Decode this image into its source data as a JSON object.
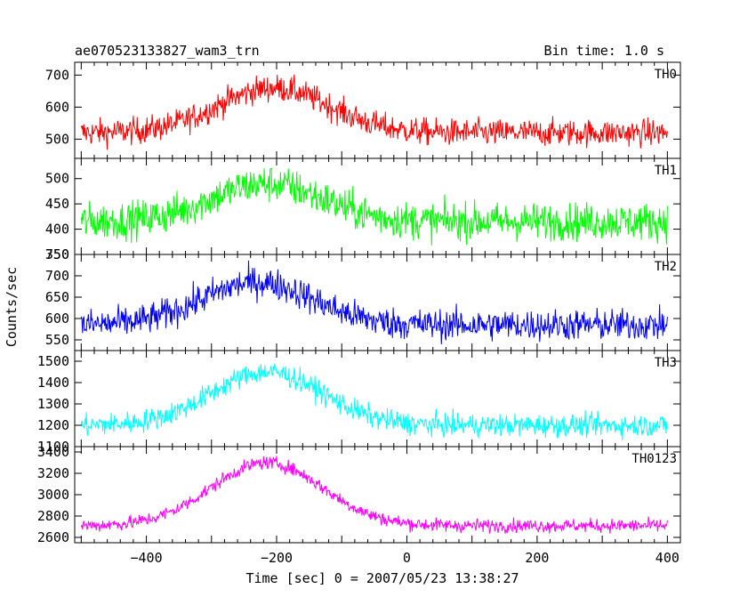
{
  "header": {
    "title": "ae070523133827_wam3_trn",
    "bin_time": "Bin time: 1.0 s"
  },
  "axes": {
    "ylabel": "Counts/sec",
    "xlabel": "Time [sec] 0 = 2007/05/23 13:38:27",
    "xlim": [
      -510,
      420
    ],
    "xticks": [
      -400,
      -200,
      0,
      200,
      400
    ],
    "xtick_labels": [
      "−400",
      "−200",
      "0",
      "200",
      "400"
    ]
  },
  "chart_data": [
    {
      "type": "line",
      "series_name": "TH0",
      "color": "#ff0000",
      "ylim": [
        440,
        740
      ],
      "yticks": [
        500,
        600,
        700
      ],
      "baseline": 520,
      "peak": 660,
      "peak_time": -205,
      "noise_amplitude": 40,
      "x_range": [
        -500,
        400
      ],
      "x_step": 1
    },
    {
      "type": "line",
      "series_name": "TH1",
      "color": "#00ff00",
      "ylim": [
        350,
        540
      ],
      "yticks": [
        350,
        400,
        450,
        500
      ],
      "baseline": 415,
      "peak": 490,
      "peak_time": -215,
      "noise_amplitude": 35,
      "x_range": [
        -500,
        400
      ],
      "x_step": 1
    },
    {
      "type": "line",
      "series_name": "TH2",
      "color": "#0000ff",
      "ylim": [
        525,
        750
      ],
      "yticks": [
        550,
        600,
        650,
        700,
        750
      ],
      "baseline": 585,
      "peak": 685,
      "peak_time": -230,
      "noise_amplitude": 35,
      "x_range": [
        -500,
        400
      ],
      "x_step": 1
    },
    {
      "type": "line",
      "series_name": "TH3",
      "color": "#00ffff",
      "ylim": [
        1100,
        1550
      ],
      "yticks": [
        1100,
        1200,
        1300,
        1400,
        1500
      ],
      "baseline": 1200,
      "peak": 1450,
      "peak_time": -215,
      "noise_amplitude": 50,
      "x_range": [
        -500,
        400
      ],
      "x_step": 1
    },
    {
      "type": "line",
      "series_name": "TH0123",
      "color": "#ff00ff",
      "ylim": [
        2550,
        3450
      ],
      "yticks": [
        2600,
        2800,
        3000,
        3200,
        3400
      ],
      "baseline": 2710,
      "peak": 3300,
      "peak_time": -215,
      "noise_amplitude": 60,
      "x_range": [
        -500,
        400
      ],
      "x_step": 1
    }
  ]
}
